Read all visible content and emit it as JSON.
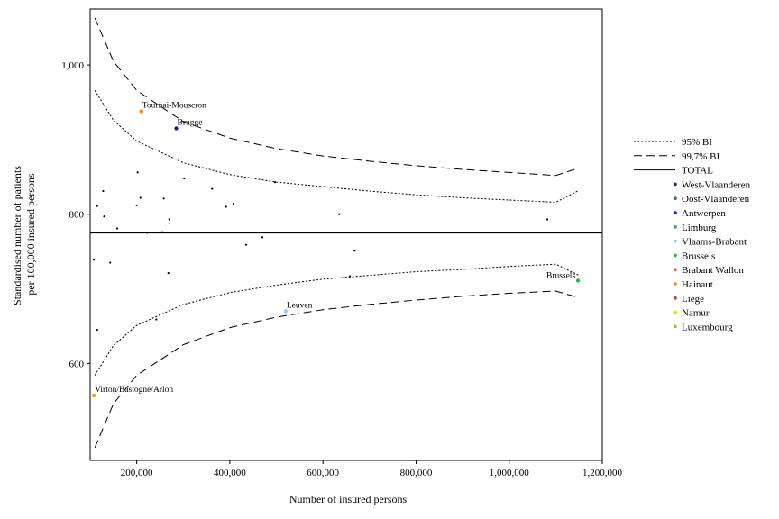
{
  "chart_data": {
    "type": "scatter",
    "title": "",
    "xlabel": "Number of insured persons",
    "ylabel": [
      "Standardised number of patients",
      "per 100,000 insured persons"
    ],
    "xlim": [
      100000,
      1200000
    ],
    "ylim": [
      470,
      1075
    ],
    "xticks": [
      200000,
      400000,
      600000,
      800000,
      1000000,
      1200000
    ],
    "xtick_labels": [
      "200,000",
      "400,000",
      "600,000",
      "800,000",
      "1,000,000",
      "1,200,000"
    ],
    "yticks": [
      600,
      800,
      1000
    ],
    "ytick_labels": [
      "600",
      "800",
      "1,000"
    ],
    "grid": false,
    "legend_position": "right",
    "total": 775,
    "legend": {
      "lines": [
        {
          "key": "ci95",
          "label": "95% BI",
          "style": "dotted"
        },
        {
          "key": "ci997",
          "label": "99,7% BI",
          "style": "dashed"
        },
        {
          "key": "total",
          "label": "TOTAL",
          "style": "solid"
        }
      ],
      "provinces": [
        {
          "label": "West-Vlaanderen",
          "color": "#1a237e"
        },
        {
          "label": "Oost-Vlaanderen",
          "color": "#3b5ec9"
        },
        {
          "label": "Antwerpen",
          "color": "#1010d8"
        },
        {
          "label": "Limburg",
          "color": "#2c8fd8"
        },
        {
          "label": "Vlaams-Brabant",
          "color": "#8ecff0"
        },
        {
          "label": "Brussels",
          "color": "#2bb24c"
        },
        {
          "label": "Brabant Wallon",
          "color": "#d96a2a"
        },
        {
          "label": "Hainaut",
          "color": "#f08a16"
        },
        {
          "label": "Liège",
          "color": "#b04a32"
        },
        {
          "label": "Namur",
          "color": "#f5d000"
        },
        {
          "label": "Luxembourg",
          "color": "#e6a420"
        }
      ]
    },
    "highlighted_points": [
      {
        "label": "Tournai-Mouscron",
        "x": 210000,
        "y": 938,
        "color": "#f08a16",
        "label_pos": "above"
      },
      {
        "label": "Brugge",
        "x": 285000,
        "y": 915,
        "color": "#1a237e",
        "label_pos": "above"
      },
      {
        "label": "Leuven",
        "x": 520000,
        "y": 670,
        "color": "#8ecff0",
        "label_pos": "above"
      },
      {
        "label": "Brussels",
        "x": 1148000,
        "y": 711,
        "color": "#2bb24c",
        "label_pos": "left"
      },
      {
        "label": "Virton/Bastogne/Arlon",
        "x": 108000,
        "y": 557,
        "color": "#e6a420",
        "label_pos": "above"
      }
    ],
    "other_points": [
      [
        115000,
        811
      ],
      [
        128000,
        831
      ],
      [
        130000,
        797
      ],
      [
        158000,
        781
      ],
      [
        200000,
        812
      ],
      [
        202000,
        856
      ],
      [
        208000,
        822
      ],
      [
        222000,
        775
      ],
      [
        258000,
        821
      ],
      [
        270000,
        793
      ],
      [
        255000,
        776
      ],
      [
        302000,
        848
      ],
      [
        362000,
        834
      ],
      [
        392000,
        810
      ],
      [
        408000,
        814
      ],
      [
        497000,
        843
      ],
      [
        635000,
        800
      ],
      [
        1082000,
        793
      ],
      [
        435000,
        759
      ],
      [
        470000,
        769
      ],
      [
        668000,
        751
      ],
      [
        108000,
        739
      ],
      [
        143000,
        735
      ],
      [
        268000,
        721
      ],
      [
        658000,
        717
      ],
      [
        242000,
        659
      ],
      [
        115000,
        645
      ]
    ],
    "ci95_upper": [
      [
        110000,
        966
      ],
      [
        150000,
        926
      ],
      [
        200000,
        898
      ],
      [
        300000,
        869
      ],
      [
        400000,
        853
      ],
      [
        500000,
        843
      ],
      [
        600000,
        837
      ],
      [
        700000,
        831
      ],
      [
        800000,
        826
      ],
      [
        900000,
        822
      ],
      [
        1000000,
        819
      ],
      [
        1100000,
        816
      ],
      [
        1150000,
        832
      ]
    ],
    "ci95_lower": [
      [
        110000,
        584
      ],
      [
        150000,
        624
      ],
      [
        200000,
        651
      ],
      [
        300000,
        679
      ],
      [
        400000,
        695
      ],
      [
        500000,
        705
      ],
      [
        600000,
        713
      ],
      [
        700000,
        718
      ],
      [
        800000,
        723
      ],
      [
        900000,
        726
      ],
      [
        1000000,
        730
      ],
      [
        1100000,
        733
      ],
      [
        1150000,
        718
      ]
    ],
    "ci997_upper": [
      [
        110000,
        1063
      ],
      [
        150000,
        1005
      ],
      [
        200000,
        966
      ],
      [
        300000,
        924
      ],
      [
        400000,
        902
      ],
      [
        500000,
        888
      ],
      [
        600000,
        878
      ],
      [
        700000,
        871
      ],
      [
        800000,
        865
      ],
      [
        900000,
        860
      ],
      [
        1000000,
        856
      ],
      [
        1100000,
        852
      ],
      [
        1150000,
        862
      ]
    ],
    "ci997_lower": [
      [
        110000,
        487
      ],
      [
        150000,
        546
      ],
      [
        200000,
        584
      ],
      [
        300000,
        625
      ],
      [
        400000,
        648
      ],
      [
        500000,
        662
      ],
      [
        600000,
        672
      ],
      [
        700000,
        679
      ],
      [
        800000,
        685
      ],
      [
        900000,
        690
      ],
      [
        1000000,
        694
      ],
      [
        1100000,
        697
      ],
      [
        1150000,
        688
      ]
    ]
  }
}
